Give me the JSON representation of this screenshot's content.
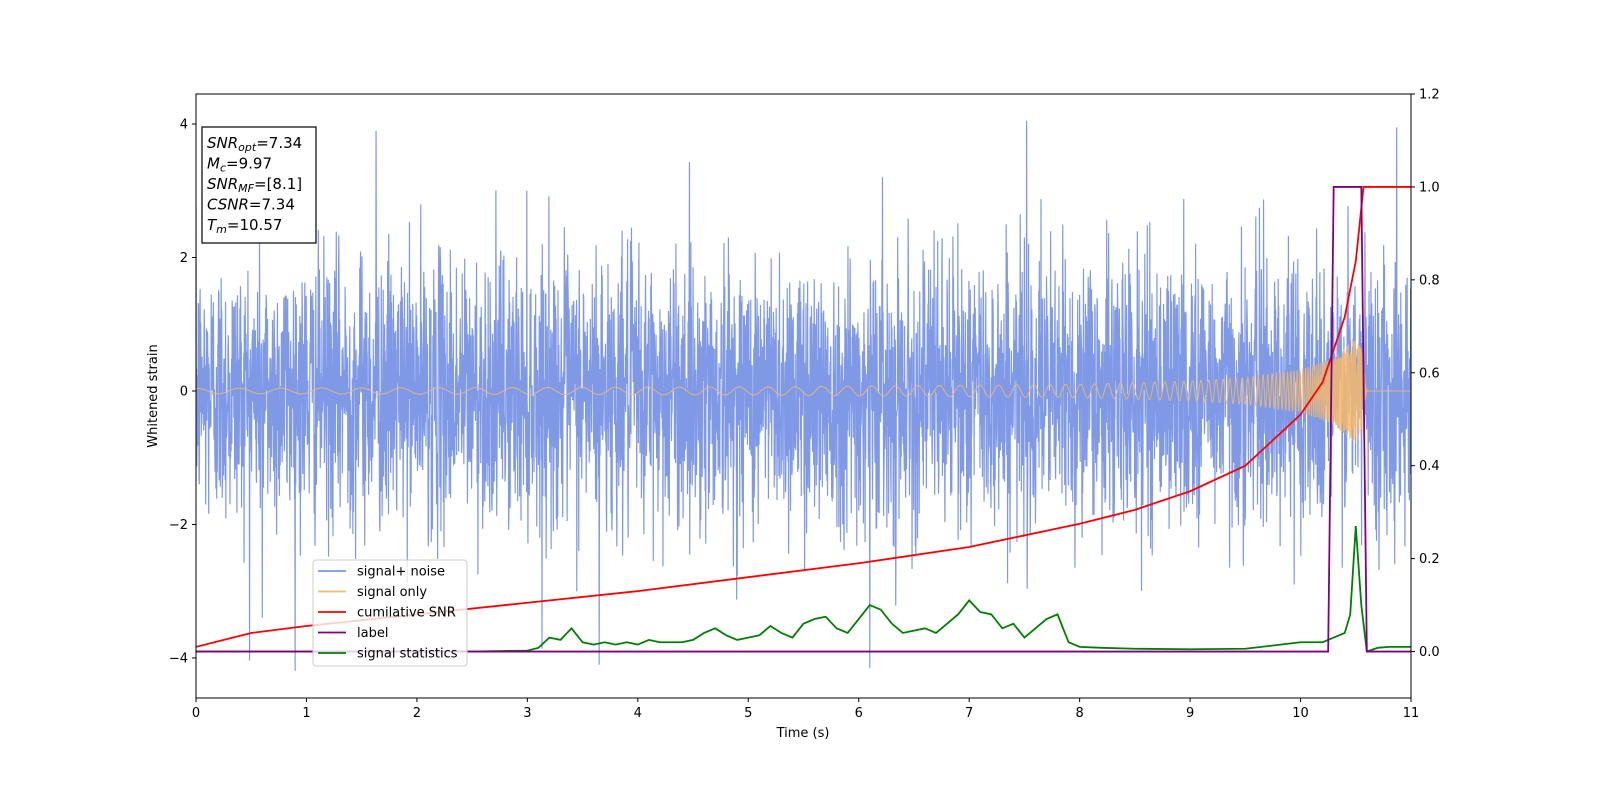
{
  "chart_data": {
    "type": "line",
    "xlabel": "Time (s)",
    "ylabel": "Whitened strain",
    "xlim": [
      0,
      11
    ],
    "ylim_left": [
      -4.6,
      4.45
    ],
    "ylim_right": [
      -0.1,
      1.2
    ],
    "x_ticks": [
      "0",
      "1",
      "2",
      "3",
      "4",
      "5",
      "6",
      "7",
      "8",
      "9",
      "10",
      "11"
    ],
    "y_ticks_left": [
      "4",
      "2",
      "0",
      "−2",
      "−4"
    ],
    "y_ticks_right": [
      "1.2",
      "1.0",
      "0.8",
      "0.6",
      "0.4",
      "0.2",
      "0.0"
    ],
    "grid": false,
    "legend_position": "lower-left",
    "annotations": [
      {
        "sym": "SNR",
        "sub": "opt",
        "val": "=7.34"
      },
      {
        "sym": "M",
        "sub": "c",
        "val": "=9.97"
      },
      {
        "sym": "SNR",
        "sub": "MF",
        "val": "=[8.1]"
      },
      {
        "sym": "CSNR",
        "sub": "",
        "val": "=7.34"
      },
      {
        "sym": "T",
        "sub": "m",
        "val": "=10.57"
      }
    ],
    "series": [
      {
        "name": "signal+ noise",
        "axis": "left",
        "color": "#7894e6",
        "noise_std": 1.0,
        "peak_extremes": [
          {
            "x": 1.63,
            "y": 3.9
          },
          {
            "x": 7.52,
            "y": 4.05
          },
          {
            "x": 10.87,
            "y": 3.95
          },
          {
            "x": 6.1,
            "y": -4.15
          },
          {
            "x": 3.65,
            "y": -4.1
          },
          {
            "x": 0.6,
            "y": -3.4
          }
        ]
      },
      {
        "name": "signal only",
        "axis": "left",
        "color": "#f5b96a",
        "amplitude": [
          [
            0,
            0.04
          ],
          [
            5,
            0.06
          ],
          [
            8,
            0.1
          ],
          [
            9,
            0.15
          ],
          [
            9.5,
            0.2
          ],
          [
            10,
            0.32
          ],
          [
            10.3,
            0.5
          ],
          [
            10.5,
            0.8
          ],
          [
            10.56,
            0.6
          ],
          [
            10.6,
            0.0
          ],
          [
            11,
            0.0
          ]
        ]
      },
      {
        "name": "cumilative SNR",
        "axis": "right",
        "color": "#ff0000",
        "x": [
          0,
          0.5,
          1,
          2,
          3,
          4,
          5,
          6,
          7,
          8,
          8.5,
          9,
          9.5,
          10,
          10.2,
          10.4,
          10.5,
          10.57,
          10.6,
          11
        ],
        "values": [
          0.01,
          0.04,
          0.055,
          0.08,
          0.105,
          0.13,
          0.16,
          0.19,
          0.225,
          0.275,
          0.305,
          0.345,
          0.4,
          0.51,
          0.58,
          0.72,
          0.84,
          1.0,
          1.0,
          1.0
        ]
      },
      {
        "name": "label",
        "axis": "right",
        "color": "#800080",
        "x": [
          0,
          10.25,
          10.3,
          10.55,
          10.6,
          11
        ],
        "values": [
          0.0,
          0.0,
          1.0,
          1.0,
          0.0,
          0.0
        ]
      },
      {
        "name": "signal statistics",
        "axis": "right",
        "color": "#008000",
        "x": [
          0,
          0.5,
          1,
          1.5,
          2,
          2.5,
          3.0,
          3.1,
          3.2,
          3.3,
          3.4,
          3.5,
          3.6,
          3.7,
          3.8,
          3.9,
          4.0,
          4.1,
          4.2,
          4.3,
          4.4,
          4.5,
          4.6,
          4.7,
          4.8,
          4.9,
          5.0,
          5.1,
          5.2,
          5.3,
          5.4,
          5.5,
          5.6,
          5.7,
          5.8,
          5.9,
          6.0,
          6.1,
          6.2,
          6.3,
          6.4,
          6.5,
          6.6,
          6.7,
          6.8,
          6.9,
          7.0,
          7.1,
          7.2,
          7.3,
          7.4,
          7.5,
          7.6,
          7.7,
          7.8,
          7.9,
          8.0,
          8.2,
          8.5,
          9.0,
          9.5,
          10.0,
          10.2,
          10.3,
          10.4,
          10.45,
          10.5,
          10.55,
          10.6,
          10.7,
          10.8,
          11.0
        ],
        "values": [
          0.0,
          0.0,
          0.0,
          0.0,
          0.0,
          0.0,
          0.002,
          0.008,
          0.03,
          0.025,
          0.05,
          0.02,
          0.015,
          0.02,
          0.015,
          0.02,
          0.015,
          0.025,
          0.02,
          0.02,
          0.02,
          0.025,
          0.04,
          0.05,
          0.035,
          0.025,
          0.03,
          0.035,
          0.055,
          0.04,
          0.03,
          0.06,
          0.07,
          0.075,
          0.05,
          0.04,
          0.07,
          0.1,
          0.09,
          0.06,
          0.04,
          0.045,
          0.05,
          0.04,
          0.06,
          0.08,
          0.11,
          0.085,
          0.08,
          0.05,
          0.06,
          0.03,
          0.05,
          0.07,
          0.08,
          0.02,
          0.01,
          0.008,
          0.006,
          0.005,
          0.006,
          0.02,
          0.02,
          0.03,
          0.04,
          0.08,
          0.27,
          0.1,
          0.0,
          0.008,
          0.01,
          0.01
        ]
      }
    ]
  }
}
